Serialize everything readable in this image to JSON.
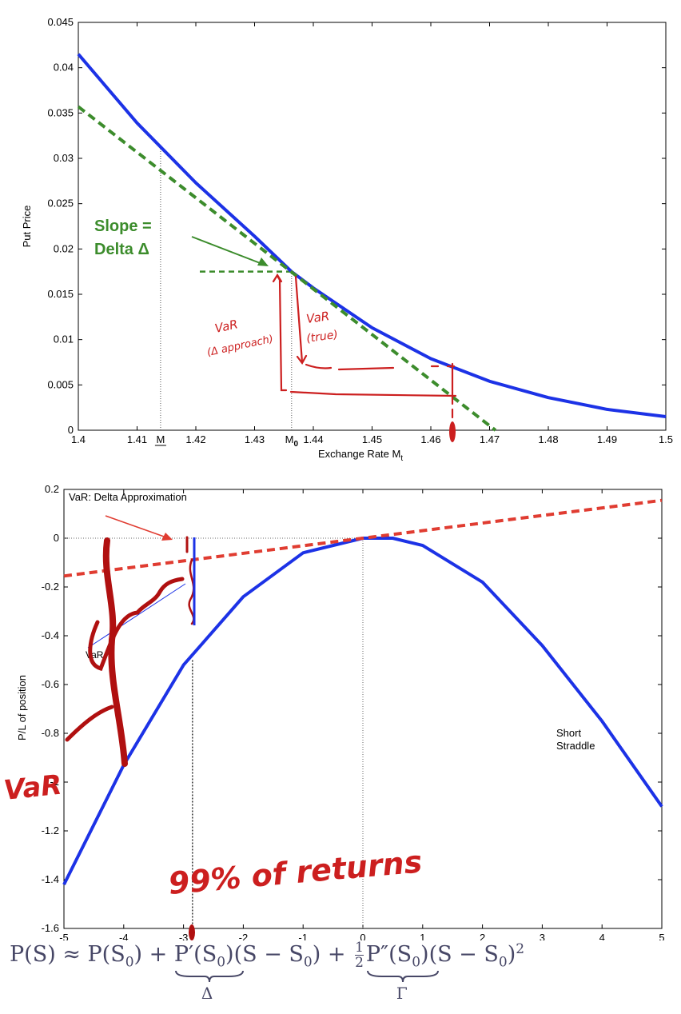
{
  "chart_data": [
    {
      "type": "line",
      "xlabel": "Exchange Rate M",
      "xlabel_sub": "t",
      "ylabel": "Put Price",
      "xlim": [
        1.4,
        1.5
      ],
      "ylim": [
        0,
        0.045
      ],
      "xticks": [
        "1.4",
        "1.41",
        "1.42",
        "1.43",
        "1.44",
        "1.45",
        "1.46",
        "1.47",
        "1.48",
        "1.49",
        "1.5"
      ],
      "yticks": [
        "0",
        "0.005",
        "0.01",
        "0.015",
        "0.02",
        "0.025",
        "0.03",
        "0.035",
        "0.04",
        "0.045"
      ],
      "special_ticks": [
        {
          "label": "M",
          "x": 1.414
        },
        {
          "label": "M",
          "sub": "0",
          "x": 1.4363
        }
      ],
      "series": [
        {
          "color": "#1c32e6",
          "style": "solid",
          "x": [
            1.4,
            1.41,
            1.42,
            1.43,
            1.4363,
            1.44,
            1.45,
            1.46,
            1.47,
            1.48,
            1.49,
            1.5
          ],
          "y": [
            0.0415,
            0.0339,
            0.0273,
            0.0214,
            0.0175,
            0.0157,
            0.0113,
            0.0079,
            0.0054,
            0.0036,
            0.0023,
            0.0015
          ]
        },
        {
          "color": "#3c8c2c",
          "style": "dashed",
          "x": [
            1.4,
            1.471
          ],
          "y": [
            0.0357,
            0
          ]
        }
      ],
      "annotations": {
        "slope_line1": "Slope =",
        "slope_line2": "Delta Δ",
        "var_delta_line1": "VaR",
        "var_delta_line2": "(Δ approach)",
        "var_true_line1": "VaR",
        "var_true_line2": "(true)"
      }
    },
    {
      "type": "line",
      "ylabel": "P/L of position",
      "xlim": [
        -5,
        5
      ],
      "ylim": [
        -1.6,
        0.2
      ],
      "xticks": [
        "-5",
        "-4",
        "-3",
        "-2",
        "-1",
        "0",
        "1",
        "2",
        "3",
        "4",
        "5"
      ],
      "yticks": [
        "-1.6",
        "-1.4",
        "-1.2",
        "-1",
        "-0.8",
        "-0.6",
        "-0.4",
        "-0.2",
        "0",
        "0.2"
      ],
      "series": [
        {
          "color": "#1c32e6",
          "style": "solid",
          "x": [
            -5,
            -4,
            -3,
            -2,
            -1,
            0,
            0.5,
            1,
            2,
            3,
            4,
            5
          ],
          "y": [
            -1.42,
            -0.93,
            -0.52,
            -0.24,
            -0.06,
            0.0,
            0.0,
            -0.03,
            -0.18,
            -0.44,
            -0.75,
            -1.1
          ]
        },
        {
          "color": "#e03c31",
          "style": "dashed",
          "x": [
            -5,
            5
          ],
          "y": [
            -0.155,
            0.155
          ]
        }
      ],
      "annotations": {
        "title": "VaR: Delta Approximation",
        "short_straddle_line1": "Short",
        "short_straddle_line2": "Straddle",
        "var_small": "VaR",
        "var_big": "VaR",
        "returns_note": "99% of returns"
      }
    }
  ],
  "formula": {
    "lhs": "P(S) ≈ P(S",
    "s0": "0",
    "t1": ") + ",
    "t2": "P′(S",
    "t3": ")",
    "t4": "(S − S",
    "t5": ") + ",
    "half_num": "1",
    "half_den": "2",
    "t6": "P″(S",
    "t7": ")",
    "t8": "(S − S",
    "t9": ")",
    "sq": "2",
    "delta_label": "Δ",
    "gamma_label": "Γ"
  }
}
